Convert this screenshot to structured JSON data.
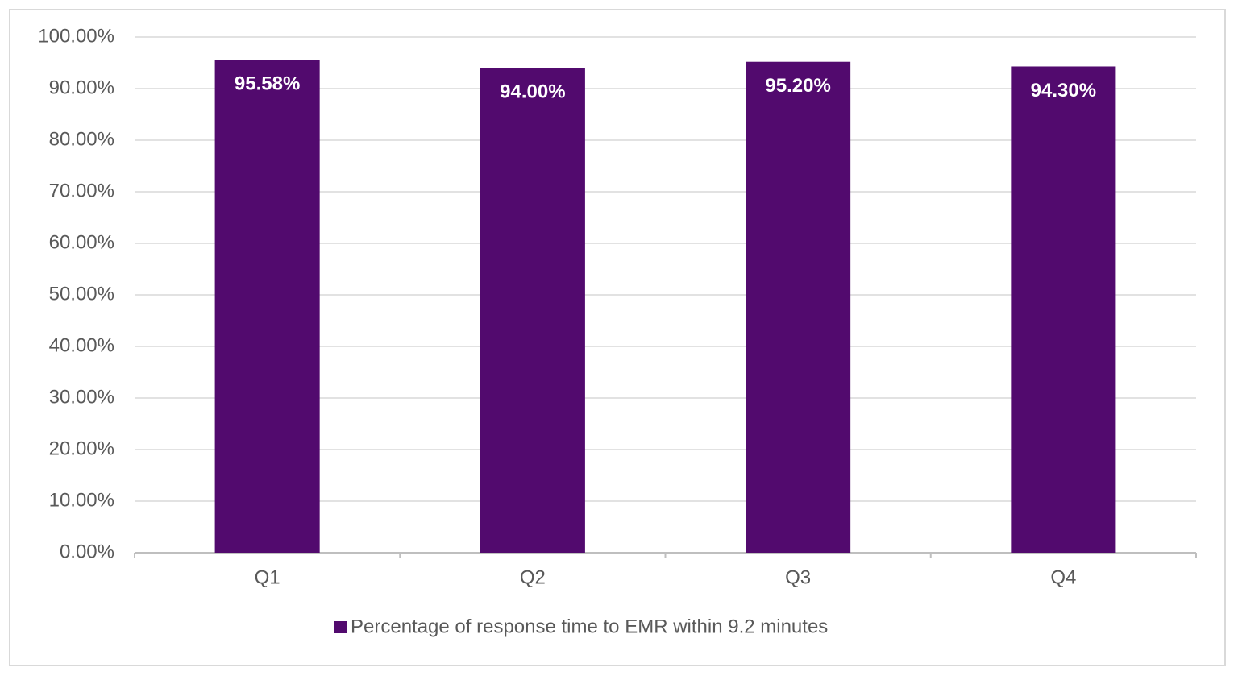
{
  "chart_data": {
    "type": "bar",
    "categories": [
      "Q1",
      "Q2",
      "Q3",
      "Q4"
    ],
    "series": [
      {
        "name": "Percentage of response time to EMR within 9.2 minutes",
        "color": "#520a6e",
        "values": [
          95.58,
          94.0,
          95.2,
          94.3
        ],
        "value_labels": [
          "95.58%",
          "94.00%",
          "95.20%",
          "94.30%"
        ]
      }
    ],
    "ylim": [
      0,
      100
    ],
    "yticks": [
      {
        "value": 0,
        "label": "0.00%"
      },
      {
        "value": 10,
        "label": "10.00%"
      },
      {
        "value": 20,
        "label": "20.00%"
      },
      {
        "value": 30,
        "label": "30.00%"
      },
      {
        "value": 40,
        "label": "40.00%"
      },
      {
        "value": 50,
        "label": "50.00%"
      },
      {
        "value": 60,
        "label": "60.00%"
      },
      {
        "value": 70,
        "label": "70.00%"
      },
      {
        "value": 80,
        "label": "80.00%"
      },
      {
        "value": 90,
        "label": "90.00%"
      },
      {
        "value": 100,
        "label": "100.00%"
      }
    ],
    "grid": true,
    "legend": "bottom"
  }
}
